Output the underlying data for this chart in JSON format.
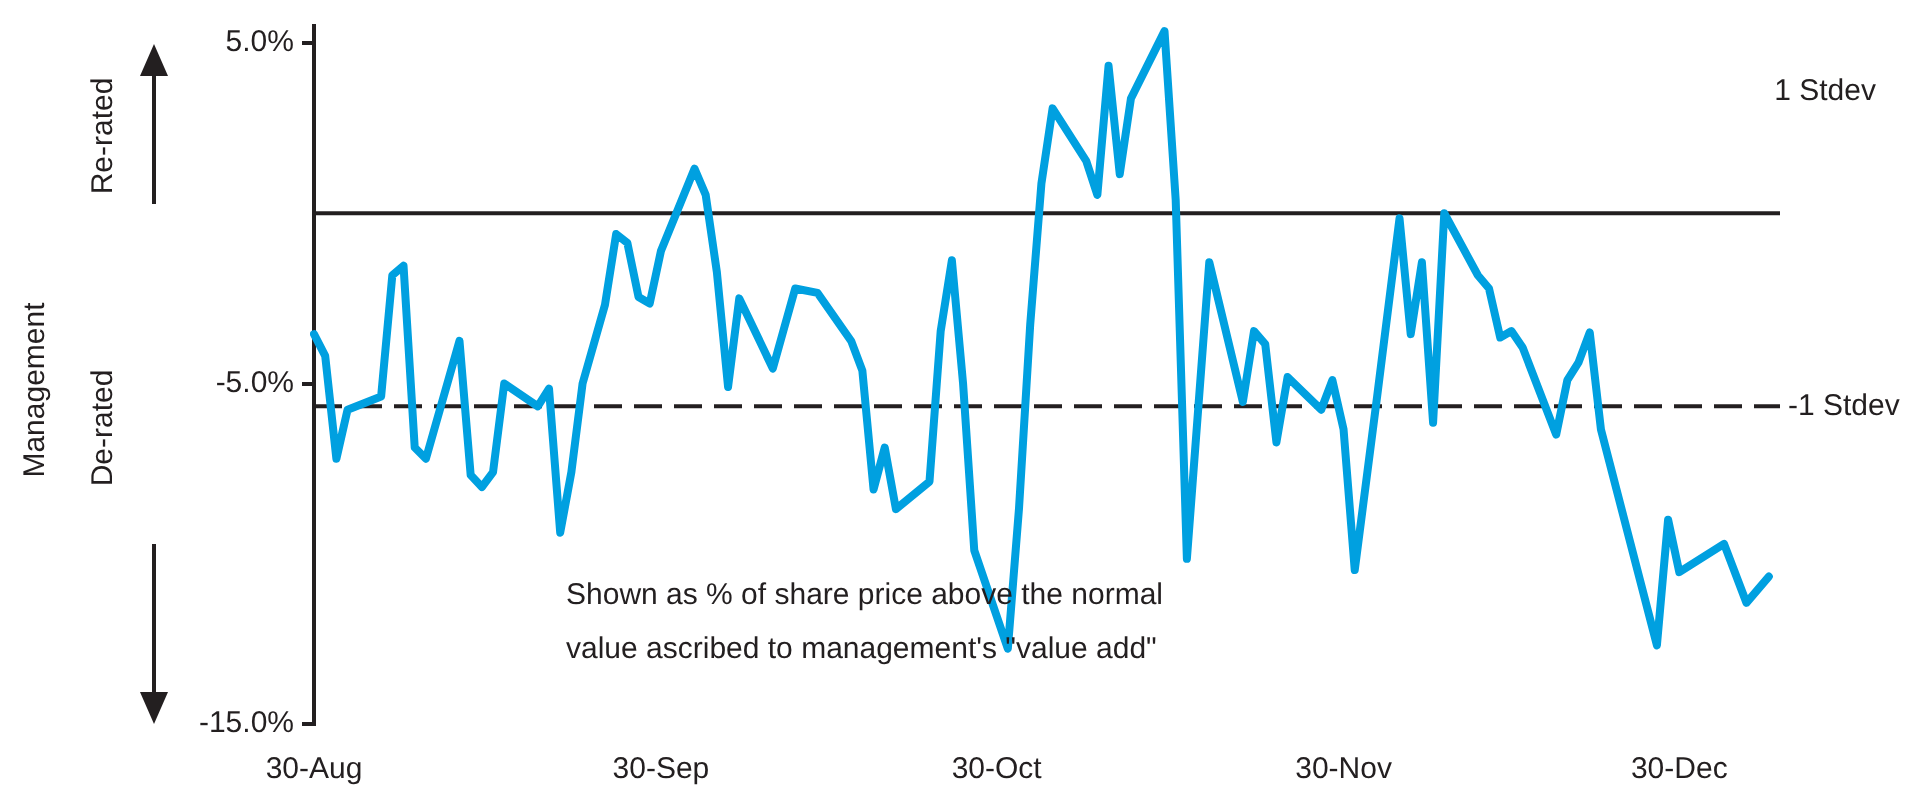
{
  "chart_data": {
    "type": "line",
    "ylabel": "Management",
    "annotations": [
      "Re-rated",
      "De-rated",
      "1 Stdev",
      "Shown as % of share price above the normal\nvalue ascribed to management's \"value add\""
    ],
    "categories": [
      "30-Aug",
      null,
      null,
      null,
      null,
      null,
      null,
      null,
      null,
      null,
      null,
      null,
      null,
      null,
      null,
      null,
      null,
      null,
      null,
      null,
      null,
      null,
      null,
      null,
      null,
      null,
      null,
      null,
      null,
      null,
      null,
      "30-Sep",
      null,
      null,
      null,
      null,
      null,
      null,
      null,
      null,
      null,
      null,
      null,
      null,
      null,
      null,
      null,
      null,
      null,
      null,
      null,
      null,
      null,
      null,
      null,
      null,
      null,
      null,
      null,
      null,
      null,
      "30-Oct",
      null,
      null,
      null,
      null,
      null,
      null,
      null,
      null,
      null,
      null,
      null,
      null,
      null,
      null,
      null,
      null,
      null,
      null,
      null,
      null,
      null,
      null,
      null,
      null,
      null,
      null,
      null,
      null,
      null,
      null,
      "30-Nov",
      null,
      null,
      null,
      null,
      null,
      null,
      null,
      null,
      null,
      null,
      null,
      null,
      null,
      null,
      null,
      null,
      null,
      null,
      null,
      null,
      null,
      null,
      null,
      null,
      null,
      null,
      null,
      null,
      null,
      "30-Dec",
      null,
      null,
      null,
      null,
      null,
      null,
      null,
      null,
      null
    ],
    "series": [
      {
        "color": "#00a0e0",
        "values": [
          -3.55,
          -4.19,
          -7.21,
          -5.77,
          null,
          null,
          -5.38,
          -1.82,
          -1.54,
          -6.88,
          -7.21,
          null,
          null,
          -3.75,
          -7.69,
          -8.04,
          -7.6,
          -5.0,
          null,
          null,
          -5.67,
          -5.15,
          -9.38,
          -7.6,
          -5.0,
          null,
          -2.69,
          -0.61,
          -0.87,
          -2.46,
          -2.65,
          -1.11,
          null,
          null,
          1.31,
          0.54,
          -1.73,
          -5.1,
          -2.5,
          null,
          null,
          -4.56,
          null,
          -2.21,
          null,
          -2.34,
          null,
          null,
          -3.75,
          -4.62,
          -8.11,
          -6.88,
          -8.69,
          null,
          null,
          -7.88,
          -3.46,
          -1.38,
          -5.0,
          -9.9,
          null,
          null,
          -12.79,
          -8.66,
          -3.27,
          0.87,
          3.08,
          null,
          null,
          1.54,
          0.54,
          4.33,
          1.15,
          3.37,
          null,
          null,
          5.35,
          0.39,
          -10.15,
          null,
          -1.44,
          null,
          null,
          -5.54,
          -3.46,
          -3.84,
          -6.73,
          -4.81,
          null,
          null,
          -5.77,
          -4.9,
          -6.35,
          -10.48,
          null,
          -5.38,
          null,
          -0.15,
          -3.55,
          -1.44,
          -6.15,
          0,
          null,
          null,
          -1.82,
          -2.21,
          -3.65,
          -3.46,
          -3.94,
          null,
          null,
          -6.5,
          -4.9,
          -4.38,
          -3.5,
          -6.35,
          null,
          null,
          null,
          null,
          -12.69,
          -9.0,
          -10.54,
          null,
          null,
          null,
          -9.71,
          null,
          -11.44,
          null,
          -10.67,
          null
        ]
      }
    ],
    "ylim": [
      -15,
      5.5
    ],
    "yticks": [
      {
        "value": -15,
        "label": "-15.0%"
      },
      {
        "value": -5,
        "label": "-5.0%"
      },
      {
        "value": 5,
        "label": "5.0%"
      }
    ],
    "ref_lines": [
      {
        "axis": "y",
        "value": 0,
        "color": "#231f20",
        "line_style": "solid"
      },
      {
        "axis": "y",
        "value": -5.67,
        "label": "-1 Stdev",
        "color": "#231f20",
        "line_style": "dashed"
      }
    ],
    "grid": false,
    "legend": false,
    "marker": "none",
    "line_style": "solid"
  }
}
